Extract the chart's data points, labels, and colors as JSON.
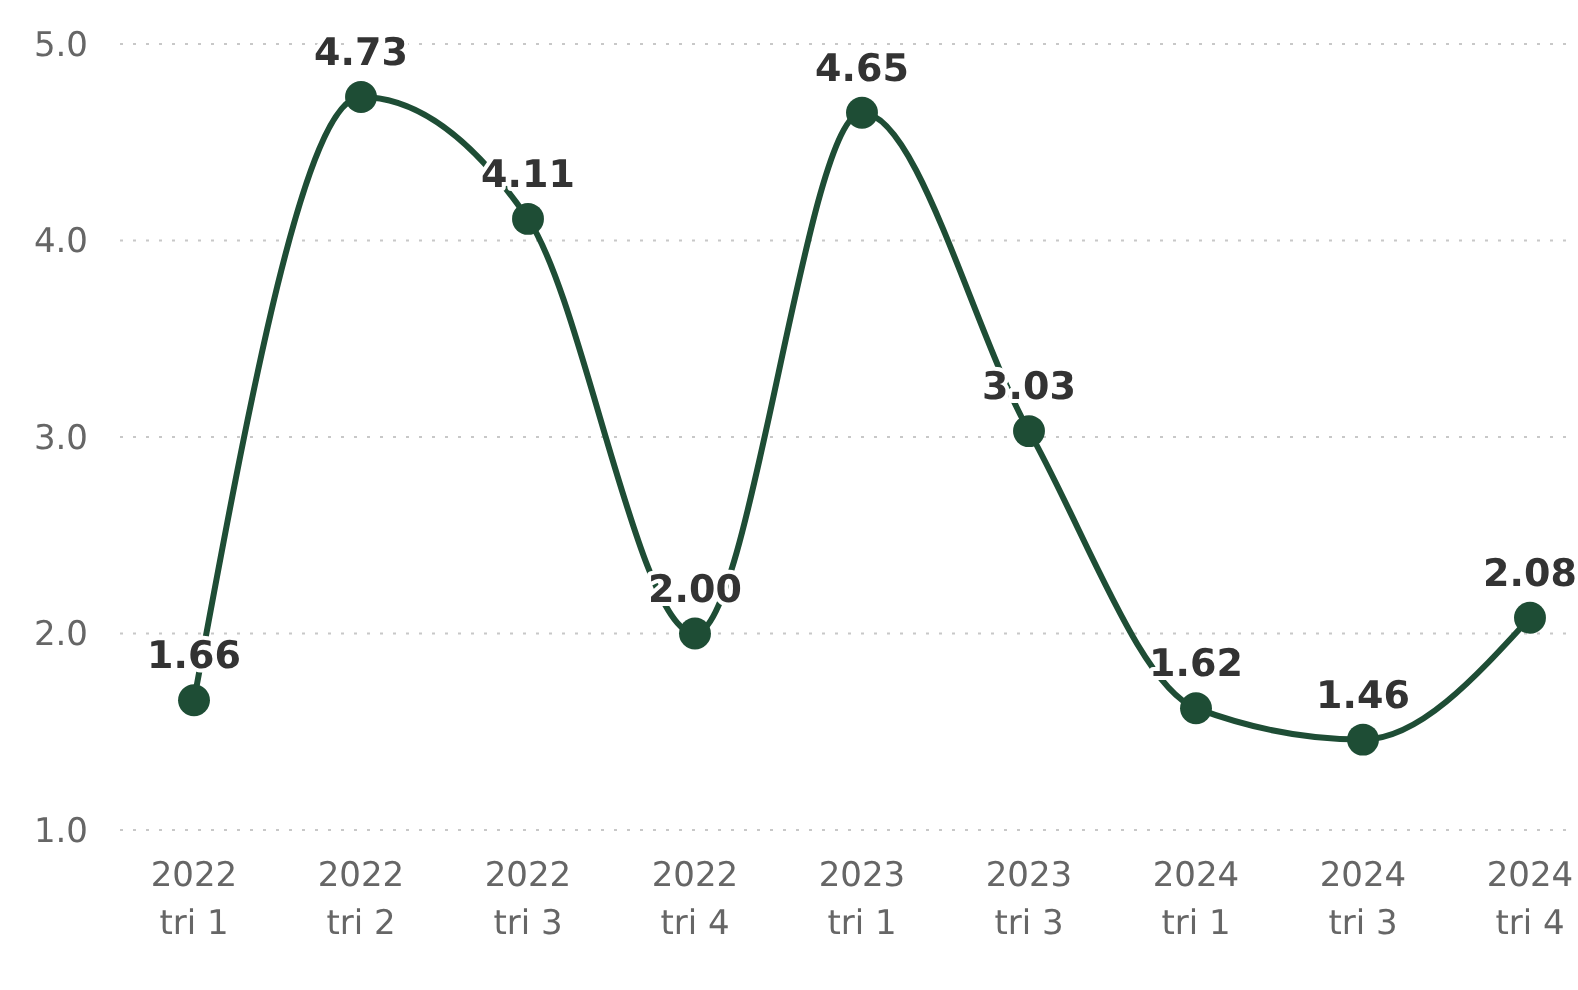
{
  "chart_data": {
    "type": "line",
    "categories": [
      "2022 tri 1",
      "2022 tri 2",
      "2022 tri 3",
      "2022 tri 4",
      "2023 tri 1",
      "2023 tri 3",
      "2024 tri 1",
      "2024 tri 3",
      "2024 tri 4"
    ],
    "series": [
      {
        "color": "#1e4d35",
        "values": [
          1.66,
          4.73,
          4.11,
          2.0,
          4.65,
          3.03,
          1.62,
          1.46,
          2.08
        ]
      }
    ],
    "value_labels": [
      "1.66",
      "4.73",
      "4.11",
      "2.00",
      "4.65",
      "3.03",
      "1.62",
      "1.46",
      "2.08"
    ],
    "ylim": [
      1,
      5
    ],
    "yticks": [
      {
        "value": 1,
        "label": "1.0"
      },
      {
        "value": 2,
        "label": "2.0"
      },
      {
        "value": 3,
        "label": "3.0"
      },
      {
        "value": 4,
        "label": "4.0"
      },
      {
        "value": 5,
        "label": "5.0"
      }
    ],
    "grid": "y",
    "marker": "circle",
    "line_style": "solid"
  }
}
